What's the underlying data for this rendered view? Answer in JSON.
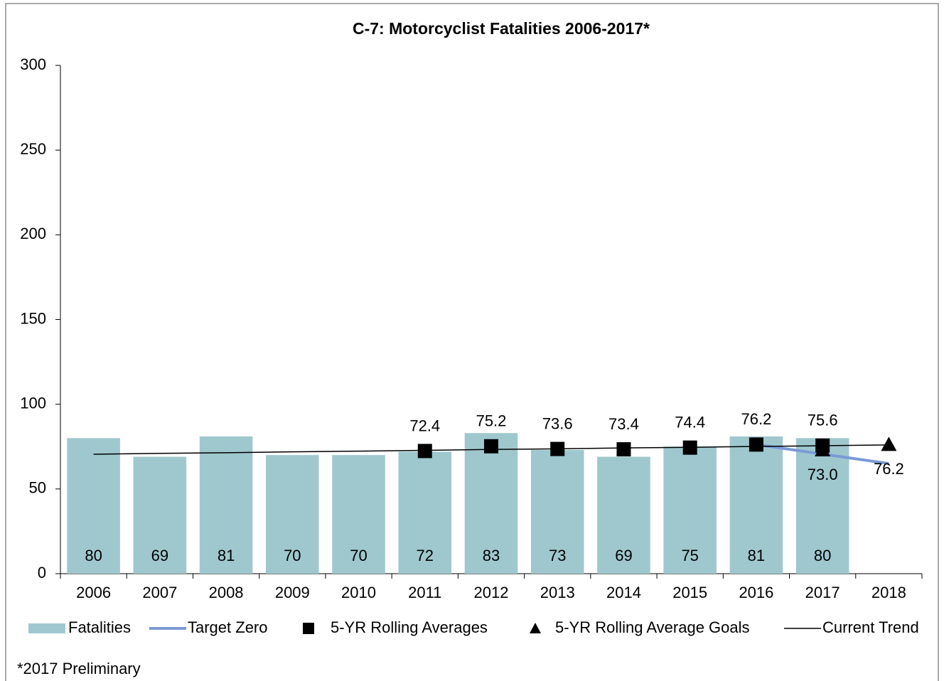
{
  "chart_data": {
    "type": "combo",
    "title": "C-7: Motorcyclist Fatalities 2006-2017*",
    "footnote": "*2017 Preliminary",
    "categories": [
      "2006",
      "2007",
      "2008",
      "2009",
      "2010",
      "2011",
      "2012",
      "2013",
      "2014",
      "2015",
      "2016",
      "2017",
      "2018"
    ],
    "ylim": [
      0,
      300
    ],
    "yticks": [
      0,
      50,
      100,
      150,
      200,
      250,
      300
    ],
    "grid": false,
    "legend": "bottom",
    "series": [
      {
        "name": "Fatalities",
        "type": "bar",
        "color": "#9fc8ce",
        "values": [
          80,
          69,
          81,
          70,
          70,
          72,
          83,
          73,
          69,
          75,
          81,
          80,
          null
        ]
      },
      {
        "name": "Target Zero",
        "type": "line",
        "color": "#7b9ad6",
        "values": [
          null,
          null,
          null,
          null,
          null,
          null,
          null,
          null,
          null,
          null,
          76.2,
          70.6,
          65.0
        ]
      },
      {
        "name": "5-YR Rolling Averages",
        "type": "scatter",
        "marker": "square",
        "color": "#000000",
        "values": [
          null,
          null,
          null,
          null,
          null,
          72.4,
          75.2,
          73.6,
          73.4,
          74.4,
          76.2,
          75.6,
          null
        ]
      },
      {
        "name": "5-YR Rolling Average Goals",
        "type": "scatter",
        "marker": "triangle",
        "color": "#000000",
        "values": [
          null,
          null,
          null,
          null,
          null,
          null,
          null,
          null,
          null,
          null,
          null,
          73.0,
          76.2
        ],
        "value_labels": [
          null,
          null,
          null,
          null,
          null,
          null,
          null,
          null,
          null,
          null,
          null,
          "73.0",
          "76.2"
        ]
      },
      {
        "name": "Current Trend",
        "type": "line",
        "color": "#000000",
        "values": [
          70.5,
          71.0,
          71.4,
          71.9,
          72.3,
          72.8,
          73.3,
          73.7,
          74.2,
          74.6,
          75.1,
          75.5,
          76.0
        ]
      }
    ]
  }
}
